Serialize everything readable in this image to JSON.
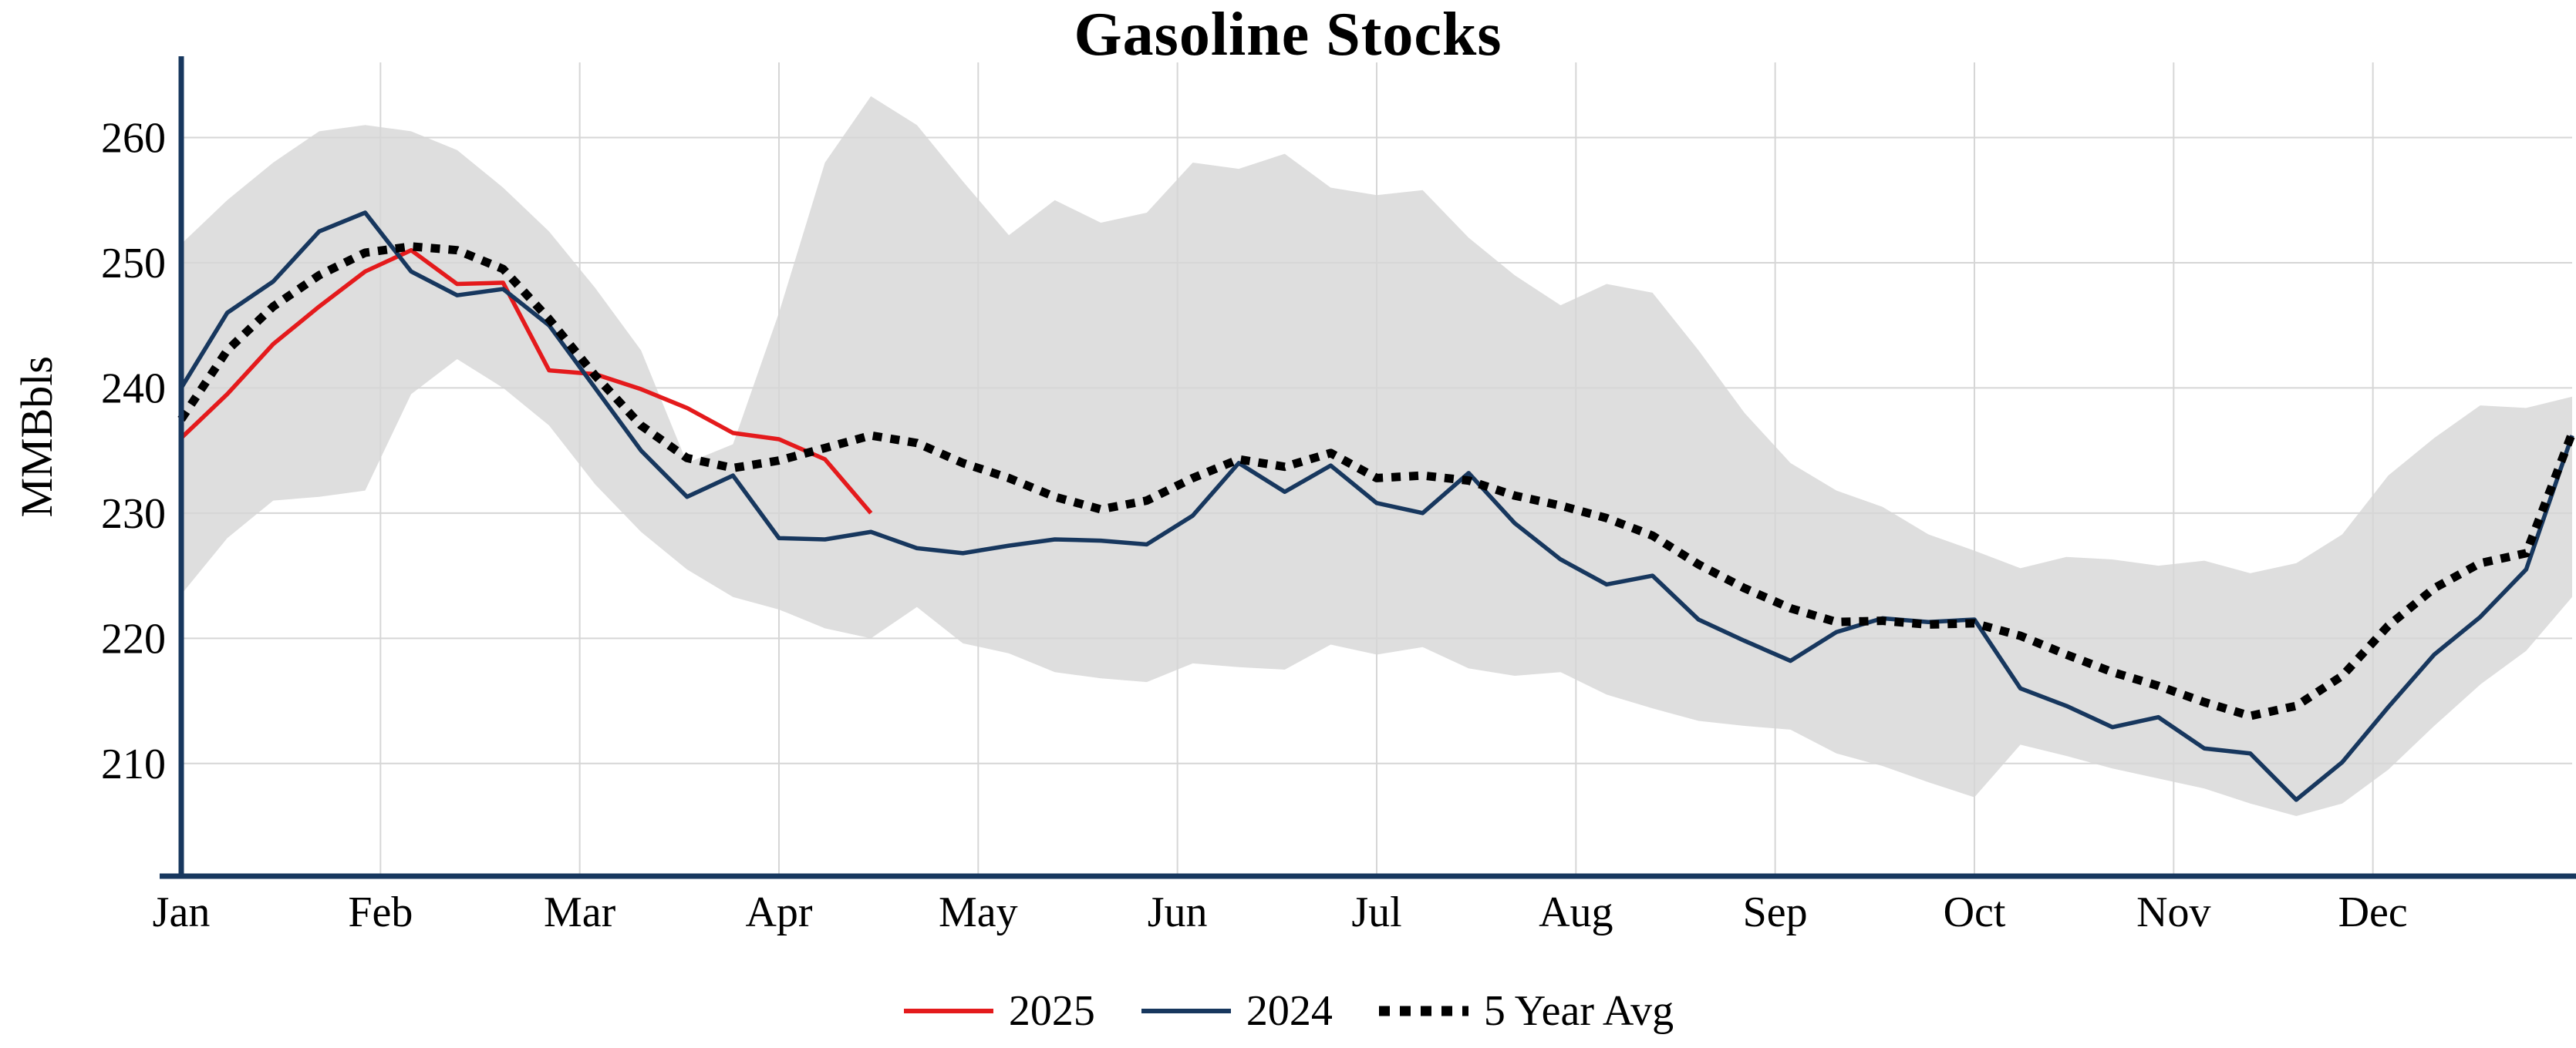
{
  "chart_data": {
    "type": "line",
    "title": "Gasoline Stocks",
    "ylabel": "MMBbls",
    "x_unit": "weekly, Jan through Dec",
    "months": [
      "Jan",
      "Feb",
      "Mar",
      "Apr",
      "May",
      "Jun",
      "Jul",
      "Aug",
      "Sep",
      "Oct",
      "Nov",
      "Dec"
    ],
    "y_ticks": [
      210,
      220,
      230,
      240,
      250,
      260
    ],
    "ylim": [
      201,
      266
    ],
    "weeks": 53,
    "grid": true,
    "legend_position": "bottom",
    "axis_color": "#17375e",
    "grid_color": "#d6d6d6",
    "series": [
      {
        "name": "2025",
        "color": "#e41a1c",
        "style": "solid",
        "values": [
          236.0,
          239.5,
          243.5,
          246.5,
          249.3,
          251.0,
          248.3,
          248.4,
          241.4,
          241.1,
          239.9,
          238.4,
          236.4,
          235.9,
          234.3,
          230.0
        ]
      },
      {
        "name": "2024",
        "color": "#17375e",
        "style": "solid",
        "values": [
          240.0,
          246.0,
          248.5,
          252.5,
          254.0,
          249.3,
          247.4,
          247.9,
          245.0,
          240.0,
          235.0,
          231.3,
          233.0,
          228.0,
          227.9,
          228.5,
          227.2,
          226.8,
          227.4,
          227.9,
          227.8,
          227.5,
          229.8,
          234.0,
          231.7,
          233.8,
          230.8,
          230.0,
          233.2,
          229.2,
          226.3,
          224.3,
          225.0,
          221.5,
          219.8,
          218.2,
          220.5,
          221.6,
          221.3,
          221.5,
          216.0,
          214.6,
          212.9,
          213.7,
          211.2,
          210.8,
          207.1,
          210.1,
          214.5,
          218.7,
          221.7,
          225.5,
          236.2
        ]
      },
      {
        "name": "5 Year Avg",
        "color": "#000000",
        "style": "dotted",
        "values": [
          237.5,
          243.0,
          246.5,
          249.0,
          250.8,
          251.3,
          251.0,
          249.5,
          245.5,
          241.0,
          237.0,
          234.4,
          233.6,
          234.2,
          235.2,
          236.2,
          235.6,
          234.0,
          232.8,
          231.3,
          230.3,
          231.0,
          232.8,
          234.3,
          233.7,
          234.8,
          232.8,
          233.0,
          232.6,
          231.4,
          230.6,
          229.6,
          228.2,
          225.9,
          224.0,
          222.4,
          221.3,
          221.4,
          221.1,
          221.2,
          220.2,
          218.7,
          217.3,
          216.2,
          214.9,
          213.8,
          214.6,
          217.0,
          221.0,
          224.0,
          226.0,
          226.8,
          236.4
        ]
      }
    ],
    "band": {
      "name": "5-year range",
      "color": "#dedede",
      "upper": [
        251.5,
        255.0,
        258.0,
        260.5,
        261.0,
        260.5,
        259.0,
        256.0,
        252.5,
        248.0,
        243.0,
        234.0,
        235.5,
        246.0,
        258.0,
        263.3,
        261.0,
        256.5,
        252.2,
        255.0,
        253.2,
        254.0,
        258.0,
        257.5,
        258.7,
        256.0,
        255.4,
        255.8,
        252.0,
        249.0,
        246.6,
        248.3,
        247.6,
        243.0,
        238.0,
        234.0,
        231.8,
        230.5,
        228.3,
        227.0,
        225.6,
        226.5,
        226.3,
        225.8,
        226.2,
        225.2,
        226.0,
        228.3,
        233.0,
        236.0,
        238.6,
        238.4,
        239.3
      ],
      "lower": [
        223.5,
        228.0,
        231.0,
        231.3,
        231.8,
        239.5,
        242.3,
        240.0,
        237.0,
        232.3,
        228.5,
        225.5,
        223.3,
        222.3,
        220.8,
        220.0,
        222.5,
        219.6,
        218.8,
        217.3,
        216.8,
        216.5,
        218.0,
        217.7,
        217.5,
        219.5,
        218.7,
        219.3,
        217.6,
        217.0,
        217.3,
        215.5,
        214.4,
        213.4,
        213.0,
        212.7,
        210.8,
        209.8,
        208.5,
        207.3,
        211.5,
        210.6,
        209.6,
        208.8,
        208.0,
        206.8,
        205.8,
        206.8,
        209.5,
        213.0,
        216.3,
        219.0,
        223.3
      ]
    },
    "legend": [
      "2025",
      "2024",
      "5 Year Avg"
    ]
  }
}
